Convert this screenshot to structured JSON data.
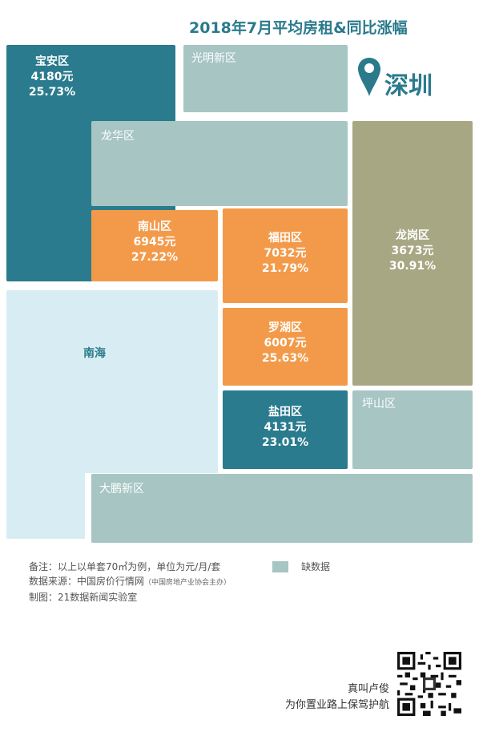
{
  "title": "2018年7月平均房租&同比涨幅",
  "city": "深圳",
  "districts": {
    "baoan": {
      "name": "宝安区",
      "rent": "4180元",
      "growth": "25.73%"
    },
    "guangming": {
      "name": "光明新区"
    },
    "longhua": {
      "name": "龙华区"
    },
    "nanshan": {
      "name": "南山区",
      "rent": "6945元",
      "growth": "27.22%"
    },
    "futian": {
      "name": "福田区",
      "rent": "7032元",
      "growth": "21.79%"
    },
    "longgang": {
      "name": "龙岗区",
      "rent": "3673元",
      "growth": "30.91%"
    },
    "nanhai": {
      "name": "南海"
    },
    "luohu": {
      "name": "罗湖区",
      "rent": "6007元",
      "growth": "25.63%"
    },
    "yantian": {
      "name": "盐田区",
      "rent": "4131元",
      "growth": "23.01%"
    },
    "pingshan": {
      "name": "坪山区"
    },
    "dapeng": {
      "name": "大鹏新区"
    }
  },
  "notes": {
    "line1": "备注：以上以单套70㎡为例，单位为元/月/套",
    "line2": "数据来源：中国房价行情网",
    "line2_small": "（中国房地产业协会主办）",
    "line3": "制图：21数据新闻实验室"
  },
  "legend": {
    "label": "缺数据",
    "color": "#a6c5c3"
  },
  "author": {
    "line1": "真叫卢俊",
    "line2": "为你置业路上保驾护航"
  },
  "colors": {
    "teal": "#2a7b8e",
    "gray": "#a6c5c3",
    "orange": "#f39a4a",
    "olive": "#a7a883",
    "light": "#d8edf3"
  },
  "icons": {
    "pin": "location-pin-icon",
    "qr": "qr-code"
  }
}
